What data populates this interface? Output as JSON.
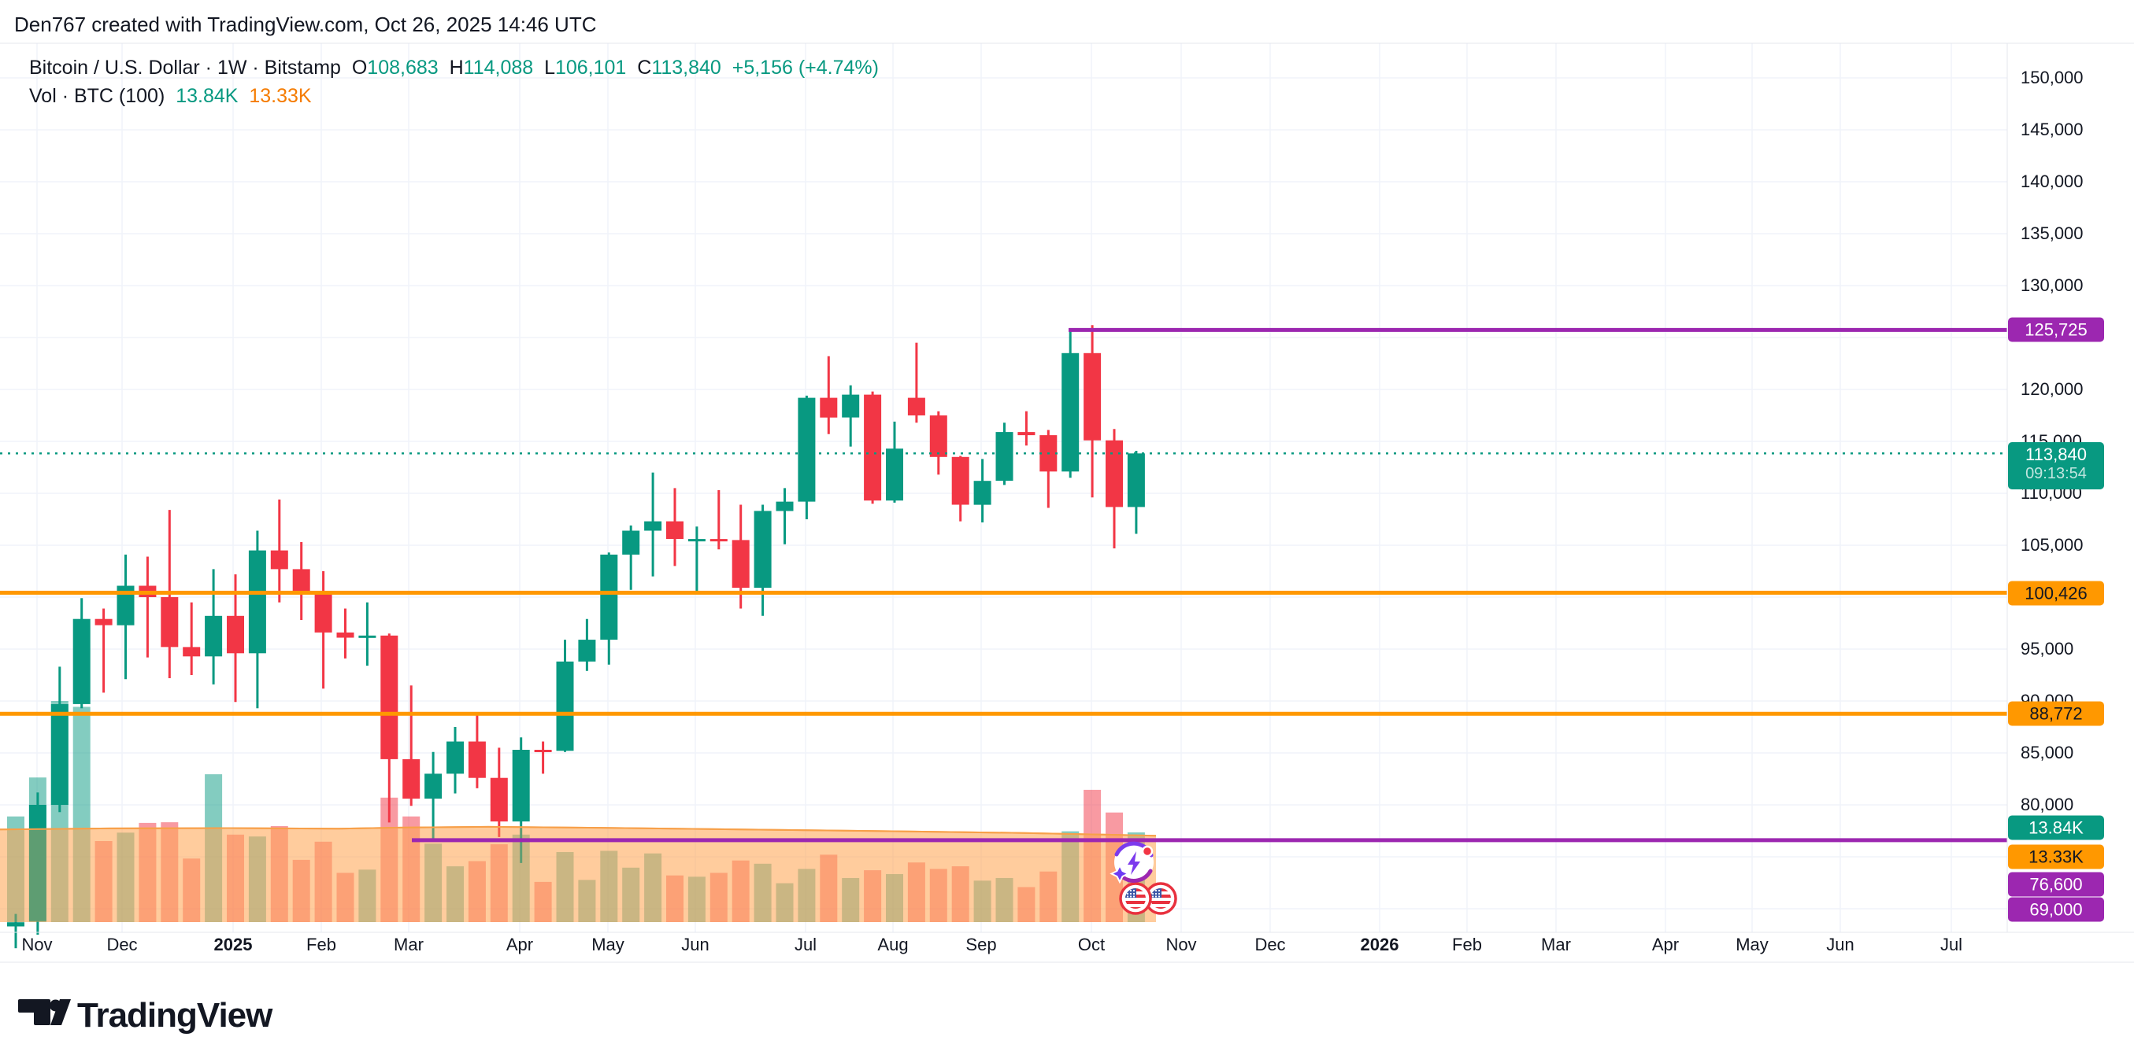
{
  "header": {
    "attribution": "Den767 created with TradingView.com, Oct 26, 2025 14:46 UTC"
  },
  "legend": {
    "symbol_title": "Bitcoin / U.S. Dollar · 1W · Bitstamp",
    "ohlc": {
      "o_label": "O",
      "o": "108,683",
      "h_label": "H",
      "h": "114,088",
      "l_label": "L",
      "l": "106,101",
      "c_label": "C",
      "c": "113,840",
      "change": "+5,156 (+4.74%)"
    },
    "volume_row": {
      "label": "Vol · BTC (100)",
      "current": "13.84K",
      "ma": "13.33K"
    }
  },
  "price_axis": {
    "ticks": [
      {
        "label": "150,000",
        "price": 150000
      },
      {
        "label": "145,000",
        "price": 145000
      },
      {
        "label": "140,000",
        "price": 140000
      },
      {
        "label": "135,000",
        "price": 135000
      },
      {
        "label": "130,000",
        "price": 130000
      },
      {
        "label": "120,000",
        "price": 120000
      },
      {
        "label": "115,000",
        "price": 115000
      },
      {
        "label": "110,000",
        "price": 110000
      },
      {
        "label": "105,000",
        "price": 105000
      },
      {
        "label": "95,000",
        "price": 95000
      },
      {
        "label": "90,000",
        "price": 90000
      },
      {
        "label": "85,000",
        "price": 85000
      },
      {
        "label": "80,000",
        "price": 80000
      }
    ],
    "badges": [
      {
        "text": "125,725",
        "bg": "purple",
        "fg": "white",
        "y": 419
      },
      {
        "text": "113,840",
        "sub": "09:13:54",
        "bg": "teal",
        "fg": "white",
        "y": 592,
        "two_line": true
      },
      {
        "text": "100,426",
        "bg": "orange",
        "fg": "dark",
        "y": 754
      },
      {
        "text": "88,772",
        "bg": "orange",
        "fg": "dark",
        "y": 907
      },
      {
        "text": "13.84K",
        "bg": "teal",
        "fg": "white",
        "y": 1052
      },
      {
        "text": "13.33K",
        "bg": "orange",
        "fg": "dark",
        "y": 1089
      },
      {
        "text": "76,600",
        "bg": "purple",
        "fg": "white",
        "y": 1124
      },
      {
        "text": "69,000",
        "bg": "purple",
        "fg": "white",
        "y": 1156
      }
    ]
  },
  "time_axis": {
    "labels": [
      {
        "text": "Nov",
        "x": 47
      },
      {
        "text": "Dec",
        "x": 155
      },
      {
        "text": "2025",
        "x": 296,
        "bold": true
      },
      {
        "text": "Feb",
        "x": 408
      },
      {
        "text": "Mar",
        "x": 519
      },
      {
        "text": "Apr",
        "x": 660
      },
      {
        "text": "May",
        "x": 772
      },
      {
        "text": "Jun",
        "x": 883
      },
      {
        "text": "Jul",
        "x": 1023
      },
      {
        "text": "Aug",
        "x": 1134
      },
      {
        "text": "Sep",
        "x": 1246
      },
      {
        "text": "Oct",
        "x": 1386
      },
      {
        "text": "Nov",
        "x": 1500
      },
      {
        "text": "Dec",
        "x": 1613
      },
      {
        "text": "2026",
        "x": 1752,
        "bold": true
      },
      {
        "text": "Feb",
        "x": 1863
      },
      {
        "text": "Mar",
        "x": 1976
      },
      {
        "text": "Apr",
        "x": 2115
      },
      {
        "text": "May",
        "x": 2225
      },
      {
        "text": "Jun",
        "x": 2337
      },
      {
        "text": "Jul",
        "x": 2478
      }
    ]
  },
  "chart_data": {
    "type": "candlestick",
    "title": "Bitcoin / U.S. Dollar 1W Bitstamp",
    "x_unit": "week",
    "x_range_visible": [
      "Nov 2024",
      "Oct 2025"
    ],
    "x_axis_extends_to": "Jul 2026",
    "ylim": [
      67700,
      152000
    ],
    "grid": true,
    "current_price": 113840,
    "countdown": "09:13:54",
    "candles_ohlcv": [
      [
        68300,
        69500,
        66200,
        68700,
        16.3
      ],
      [
        68800,
        81200,
        67500,
        80000,
        22.3
      ],
      [
        80000,
        93300,
        79300,
        89700,
        34.1
      ],
      [
        89700,
        99900,
        89300,
        97900,
        33.2
      ],
      [
        97900,
        98900,
        90800,
        97300,
        12.5
      ],
      [
        97300,
        104100,
        92100,
        101100,
        13.8
      ],
      [
        101100,
        103900,
        94200,
        100000,
        15.3
      ],
      [
        100000,
        108400,
        92200,
        95200,
        15.4
      ],
      [
        95200,
        99500,
        92500,
        94300,
        9.8
      ],
      [
        94300,
        102700,
        91600,
        98200,
        22.8
      ],
      [
        98200,
        102200,
        89900,
        94600,
        13.5
      ],
      [
        94600,
        106400,
        89300,
        104500,
        13.2
      ],
      [
        104500,
        109400,
        99500,
        102700,
        14.8
      ],
      [
        102700,
        105300,
        97800,
        100600,
        9.6
      ],
      [
        100600,
        102500,
        91200,
        96600,
        12.4
      ],
      [
        96600,
        98900,
        94100,
        96100,
        7.6
      ],
      [
        96100,
        99500,
        93400,
        96300,
        8.1
      ],
      [
        96300,
        96500,
        78300,
        84400,
        19.2
      ],
      [
        84400,
        91500,
        79900,
        80600,
        16.3
      ],
      [
        80600,
        85100,
        76600,
        83000,
        12.1
      ],
      [
        83000,
        87500,
        81100,
        86100,
        8.6
      ],
      [
        86100,
        88772,
        81600,
        82600,
        9.4
      ],
      [
        82600,
        85500,
        76900,
        78400,
        12.0
      ],
      [
        78400,
        86500,
        74400,
        85300,
        13.5
      ],
      [
        85300,
        86100,
        83000,
        85200,
        6.2
      ],
      [
        85200,
        95900,
        85100,
        93800,
        10.8
      ],
      [
        93800,
        97900,
        92900,
        95900,
        6.5
      ],
      [
        95900,
        104300,
        93500,
        104100,
        11.0
      ],
      [
        104100,
        106900,
        100700,
        106400,
        8.4
      ],
      [
        106400,
        112000,
        102000,
        107300,
        10.6
      ],
      [
        107300,
        110500,
        103000,
        105600,
        7.2
      ],
      [
        105600,
        106800,
        100426,
        105600,
        7.0
      ],
      [
        105600,
        110300,
        104600,
        105500,
        7.6
      ],
      [
        105500,
        108900,
        98900,
        100900,
        9.5
      ],
      [
        100900,
        108900,
        98200,
        108300,
        9.0
      ],
      [
        108300,
        110500,
        105100,
        109200,
        6.0
      ],
      [
        109200,
        119400,
        107500,
        119200,
        8.2
      ],
      [
        119200,
        123200,
        115700,
        117300,
        10.4
      ],
      [
        117300,
        120400,
        114500,
        119500,
        6.8
      ],
      [
        119500,
        119800,
        109000,
        109300,
        8.0
      ],
      [
        109300,
        116900,
        109100,
        114300,
        7.4
      ],
      [
        119200,
        124500,
        116800,
        117500,
        9.2
      ],
      [
        117500,
        117900,
        111800,
        113500,
        8.2
      ],
      [
        113500,
        113600,
        107300,
        108900,
        8.6
      ],
      [
        108900,
        113300,
        107200,
        111200,
        6.4
      ],
      [
        111200,
        116800,
        110800,
        115900,
        6.8
      ],
      [
        115900,
        117900,
        114600,
        115600,
        5.4
      ],
      [
        115600,
        116100,
        108600,
        112100,
        7.8
      ],
      [
        112100,
        125725,
        111500,
        123500,
        14.0
      ],
      [
        123500,
        126200,
        109600,
        115100,
        20.4
      ],
      [
        115100,
        116200,
        104700,
        108683,
        16.9
      ],
      [
        108683,
        114088,
        106101,
        113840,
        13.84
      ]
    ],
    "volume_unit": "K BTC",
    "volume_ma_length": 100,
    "volume_current": 13.84,
    "volume_ma_current": 13.33,
    "volume_ma_points": [
      [
        0,
        14.3
      ],
      [
        140,
        14.45
      ],
      [
        290,
        14.5
      ],
      [
        430,
        14.4
      ],
      [
        520,
        14.6
      ],
      [
        620,
        14.7
      ],
      [
        760,
        14.55
      ],
      [
        900,
        14.35
      ],
      [
        1040,
        14.15
      ],
      [
        1180,
        13.95
      ],
      [
        1300,
        13.75
      ],
      [
        1400,
        13.5
      ],
      [
        1468,
        13.33
      ]
    ],
    "levels": [
      {
        "price": 125725,
        "color": "purple",
        "from_x": 1357,
        "label": "125,725"
      },
      {
        "price": 100426,
        "color": "orange",
        "from_x": 0,
        "label": "100,426"
      },
      {
        "price": 88772,
        "color": "orange",
        "from_x": 0,
        "label": "88,772"
      },
      {
        "price": 76600,
        "color": "purple",
        "from_x": 523,
        "label": "76,600"
      },
      {
        "price": 69000,
        "color": "purple",
        "from_x": null,
        "label": "69,000"
      }
    ]
  },
  "stickers": {
    "spark": {
      "x": 1440,
      "y": 1096
    },
    "flags": [
      {
        "x": 1474,
        "y": 1142
      },
      {
        "x": 1442,
        "y": 1142
      }
    ]
  },
  "footer": {
    "brand": "TradingView"
  },
  "colors": {
    "up": "#089981",
    "down": "#F23645",
    "vol_up": "rgba(8,153,129,0.5)",
    "vol_down": "rgba(242,54,69,0.5)",
    "ma_line": "#F7A049",
    "ma_fill": "rgba(255,167,86,0.35)",
    "orange_level": "#FF9800",
    "purple_level": "#9C27B0",
    "grid": "#F0F3FA",
    "border": "#E4E7EE",
    "axis_text": "#131722",
    "badge_teal": "#089981",
    "badge_orange": "#FF9800",
    "badge_purple": "#9C27B0",
    "badge_dark_text": "#131722"
  }
}
